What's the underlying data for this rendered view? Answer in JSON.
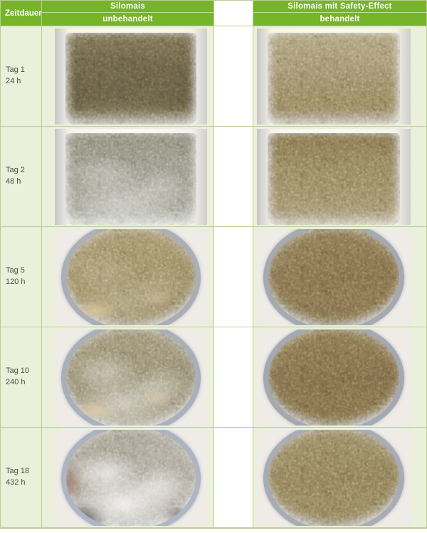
{
  "colors": {
    "header_green": "#76b42a",
    "cell_green": "#eaf0da",
    "grid_border": "#bccd96",
    "header_text": "#ffffff",
    "label_text": "#4c4f45",
    "gap_white": "#ffffff"
  },
  "header": {
    "time_column": "Zeitdauer",
    "untreated": {
      "title": "Silomais",
      "subtitle": "unbehandelt"
    },
    "treated": {
      "title": "Silomais mit Safety-Effect",
      "subtitle": "behandelt"
    }
  },
  "rows": [
    {
      "day": "Tag 1",
      "hours": "24 h",
      "left": {
        "id": "unbehandelt-tag1",
        "container": "jar",
        "surface": "linear-gradient(180deg,#7d7458,#6a6046 35%,#645b41 70%,#6e6549)",
        "mold": 0.05,
        "condition": "dark olive-brown silage, compact in glass jar"
      },
      "right": {
        "id": "behandelt-tag1",
        "container": "jar",
        "surface": "linear-gradient(180deg,#b2a57d,#a59471 40%,#95845e 78%,#8d7b54)",
        "mold": 0,
        "condition": "light tan silage flakes in glass jar"
      }
    },
    {
      "day": "Tag 2",
      "hours": "48 h",
      "left": {
        "id": "unbehandelt-tag2",
        "container": "jar",
        "surface": "linear-gradient(180deg,#8e8e7b,#9c9c8b 40%,#a9a99b 75%,#b3b3a7)",
        "mold": 0.38,
        "condition": "grey-green haze, first fungal growth"
      },
      "right": {
        "id": "behandelt-tag2",
        "container": "jar",
        "surface": "linear-gradient(180deg,#857450,#988863 45%,#a1916b 80%,#988760)",
        "mold": 0,
        "condition": "tan-olive silage unchanged"
      }
    },
    {
      "day": "Tag 5",
      "hours": "120 h",
      "left": {
        "id": "unbehandelt-tag5",
        "container": "bowl",
        "accent": "chunk-bl",
        "surface": "linear-gradient(160deg,#ab9a74,#a19068 45%,#988965)",
        "mold": 0.2,
        "condition": "tan silage with pale chunks in glass bowl"
      },
      "right": {
        "id": "behandelt-tag5",
        "container": "bowl",
        "surface": "linear-gradient(160deg,#8e7c58,#83714e 50%,#877551)",
        "mold": 0,
        "condition": "brown mottled silage in glass bowl"
      }
    },
    {
      "day": "Tag 10",
      "hours": "240 h",
      "left": {
        "id": "unbehandelt-tag10",
        "container": "bowl",
        "accent": "chunk-bl",
        "surface": "linear-gradient(170deg,#a39878,#9a9075 50%,#a79e85)",
        "mold": 0.5,
        "condition": "white mould sheen spreading over silage"
      },
      "right": {
        "id": "behandelt-tag10",
        "container": "bowl",
        "surface": "linear-gradient(170deg,#8b7954,#7f6d4a 55%,#877550)",
        "mold": 0,
        "condition": "brown silage unchanged"
      }
    },
    {
      "day": "Tag 18",
      "hours": "432 h",
      "left": {
        "id": "unbehandelt-tag18",
        "container": "bowl",
        "accent": "dark-bl",
        "surface": "linear-gradient(170deg,#a89e8b,#b4aea1 40%,#bdb8ad)",
        "mold": 0.85,
        "condition": "dense white mould cover, spoiled silage"
      },
      "right": {
        "id": "behandelt-tag18",
        "container": "bowl",
        "surface": "linear-gradient(170deg,#9d8c66,#91805b 50%,#988761)",
        "mold": 0,
        "condition": "tan silage unchanged"
      }
    }
  ]
}
